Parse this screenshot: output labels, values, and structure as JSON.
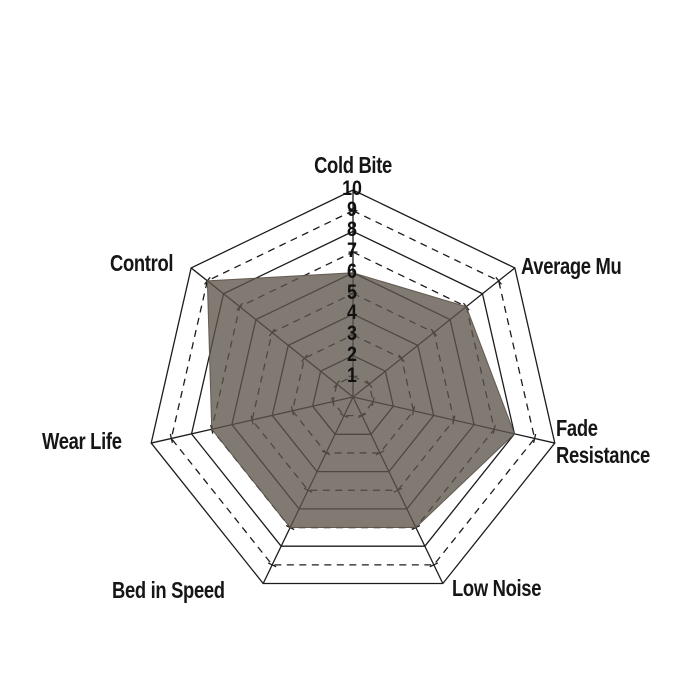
{
  "chart_data": {
    "type": "radar",
    "title": "",
    "categories": [
      "Cold Bite",
      "Average Mu",
      "Fade Resistance",
      "Low Noise",
      "Bed in Speed",
      "Wear Life",
      "Control"
    ],
    "values": [
      6,
      7,
      8,
      7,
      7,
      7,
      9
    ],
    "scale_min": 0,
    "scale_max": 10,
    "tick_labels": [
      "10",
      "9",
      "8",
      "7",
      "6",
      "5",
      "4",
      "3",
      "2",
      "1"
    ],
    "grid": {
      "ring_count": 10,
      "solid_rings": [
        2,
        4,
        6,
        8,
        10
      ],
      "dashed_rings": [
        1,
        3,
        5,
        7,
        9
      ],
      "spoke_count": 7,
      "grid_on": true
    },
    "legend_position": "none",
    "colors": {
      "fill": "rgba(94,85,75,0.78)",
      "fill_edge": "rgba(94,85,75,0.95)",
      "grid_line": "#1c1c1c",
      "label_text": "#161616",
      "background": "#ffffff"
    }
  }
}
